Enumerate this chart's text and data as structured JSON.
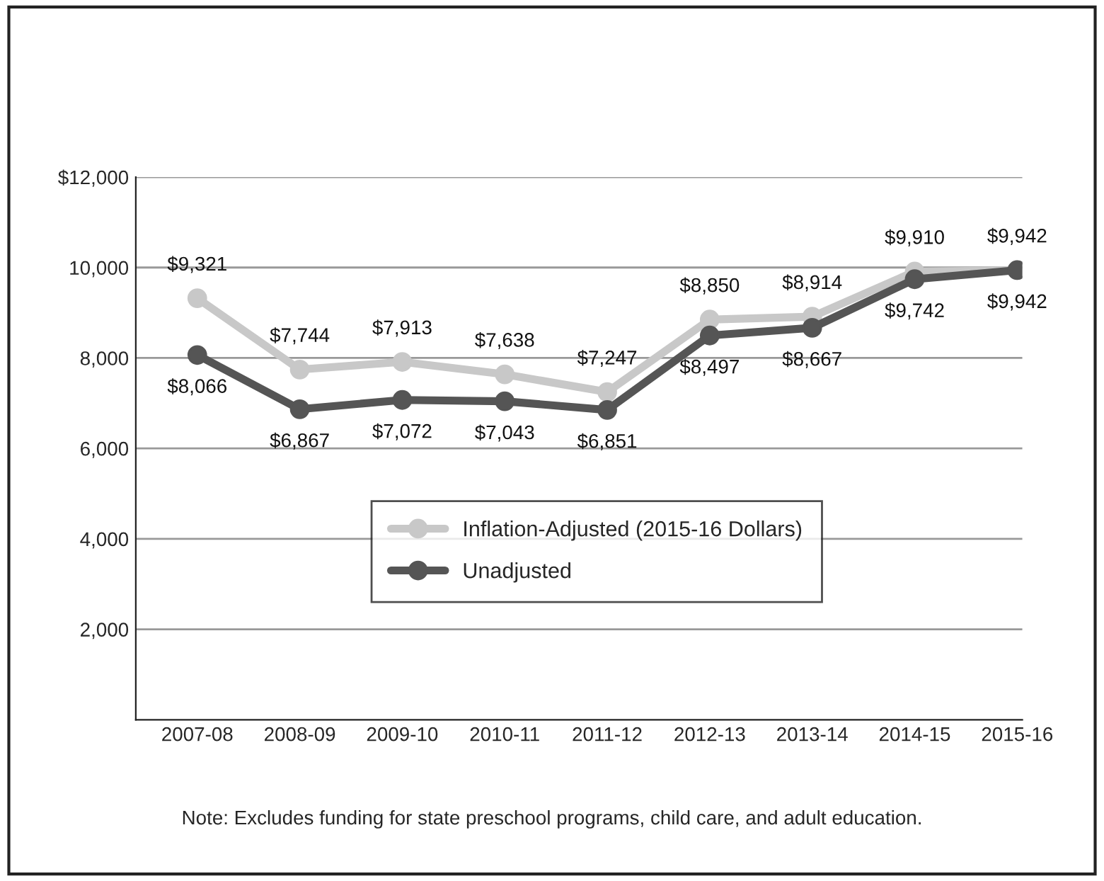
{
  "chart_data": {
    "type": "line",
    "categories": [
      "2007-08",
      "2008-09",
      "2009-10",
      "2010-11",
      "2011-12",
      "2012-13",
      "2013-14",
      "2014-15",
      "2015-16"
    ],
    "series": [
      {
        "name": "Inflation-Adjusted (2015-16 Dollars)",
        "color": "#c8c8c8",
        "values": [
          9321,
          7744,
          7913,
          7638,
          7247,
          8850,
          8914,
          9910,
          9942
        ],
        "value_labels": [
          "$9,321",
          "$7,744",
          "$7,913",
          "$7,638",
          "$7,247",
          "$8,850",
          "$8,914",
          "$9,910",
          "$9,942"
        ]
      },
      {
        "name": "Unadjusted",
        "color": "#555555",
        "values": [
          8066,
          6867,
          7072,
          7043,
          6851,
          8497,
          8667,
          9742,
          9942
        ],
        "value_labels": [
          "$8,066",
          "$6,867",
          "$7,072",
          "$7,043",
          "$6,851",
          "$8,497",
          "$8,667",
          "$9,742",
          "$9,942"
        ]
      }
    ],
    "ylim": [
      0,
      12000
    ],
    "yticks": [
      {
        "value": 2000,
        "label": "2,000"
      },
      {
        "value": 4000,
        "label": "4,000"
      },
      {
        "value": 6000,
        "label": "6,000"
      },
      {
        "value": 8000,
        "label": "8,000"
      },
      {
        "value": 10000,
        "label": "10,000"
      },
      {
        "value": 12000,
        "label": "$12,000"
      }
    ],
    "grid": "y",
    "legend": "center",
    "marker": "circle",
    "line_style": "solid",
    "annotations": [
      "Note: Excludes funding for state preschool programs, child care, and adult education."
    ]
  }
}
